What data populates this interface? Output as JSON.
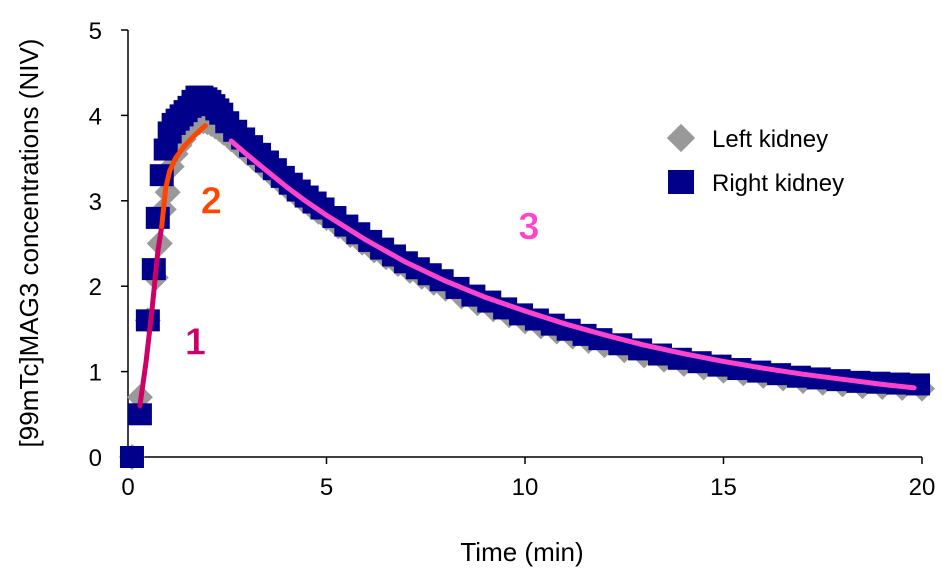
{
  "chart_data": {
    "type": "scatter",
    "xlabel": "Time (min)",
    "ylabel": "[99mTc]MAG3 concentrations (NIV)",
    "xlim": [
      0,
      20
    ],
    "ylim": [
      0,
      5
    ],
    "x_ticks": [
      "0",
      "5",
      "10",
      "15",
      "20"
    ],
    "y_ticks": [
      "0",
      "1",
      "2",
      "3",
      "4",
      "5"
    ],
    "grid": false,
    "legend_position": "top-right",
    "series": [
      {
        "name": "Left kidney",
        "marker": "diamond",
        "color": "#999999",
        "x": [
          0.1,
          0.3,
          0.5,
          0.7,
          0.8,
          0.9,
          1.0,
          1.1,
          1.2,
          1.3,
          1.4,
          1.5,
          1.6,
          1.7,
          1.8,
          1.9,
          2.0,
          2.1,
          2.2,
          2.3,
          2.4,
          2.6,
          2.8,
          3.0,
          3.2,
          3.4,
          3.6,
          3.8,
          4.0,
          4.2,
          4.4,
          4.6,
          4.8,
          5.0,
          5.3,
          5.6,
          5.9,
          6.2,
          6.5,
          6.8,
          7.1,
          7.4,
          7.7,
          8.0,
          8.4,
          8.8,
          9.2,
          9.6,
          10.0,
          10.4,
          10.8,
          11.2,
          11.6,
          12.0,
          12.5,
          13.0,
          13.5,
          14.0,
          14.5,
          15.0,
          15.5,
          16.0,
          16.5,
          17.0,
          17.5,
          18.0,
          18.5,
          19.0,
          19.5,
          20.0
        ],
        "y": [
          0.0,
          0.7,
          1.6,
          2.1,
          2.5,
          2.9,
          3.1,
          3.4,
          3.55,
          3.65,
          3.72,
          3.8,
          3.86,
          3.9,
          3.92,
          3.93,
          3.92,
          3.9,
          3.87,
          3.84,
          3.8,
          3.72,
          3.64,
          3.56,
          3.48,
          3.4,
          3.32,
          3.24,
          3.16,
          3.09,
          3.01,
          2.94,
          2.87,
          2.8,
          2.7,
          2.6,
          2.51,
          2.42,
          2.34,
          2.26,
          2.18,
          2.11,
          2.04,
          1.97,
          1.88,
          1.8,
          1.73,
          1.66,
          1.59,
          1.53,
          1.47,
          1.41,
          1.36,
          1.31,
          1.25,
          1.19,
          1.14,
          1.09,
          1.05,
          1.01,
          0.98,
          0.95,
          0.92,
          0.89,
          0.87,
          0.85,
          0.83,
          0.82,
          0.81,
          0.8
        ]
      },
      {
        "name": "Right kidney",
        "marker": "square",
        "color": "#00008B",
        "x": [
          0.1,
          0.3,
          0.5,
          0.65,
          0.75,
          0.85,
          0.95,
          1.05,
          1.15,
          1.25,
          1.35,
          1.45,
          1.55,
          1.65,
          1.75,
          1.85,
          1.95,
          2.05,
          2.15,
          2.25,
          2.35,
          2.5,
          2.7,
          2.9,
          3.1,
          3.3,
          3.5,
          3.7,
          3.9,
          4.1,
          4.3,
          4.5,
          4.7,
          4.9,
          5.2,
          5.5,
          5.8,
          6.1,
          6.4,
          6.7,
          7.0,
          7.3,
          7.6,
          7.9,
          8.3,
          8.7,
          9.1,
          9.5,
          9.9,
          10.3,
          10.7,
          11.1,
          11.5,
          11.9,
          12.4,
          12.9,
          13.4,
          13.9,
          14.4,
          14.9,
          15.4,
          15.9,
          16.4,
          16.9,
          17.4,
          17.9,
          18.4,
          18.9,
          19.4,
          19.9
        ],
        "y": [
          0.0,
          0.5,
          1.6,
          2.2,
          2.8,
          3.3,
          3.6,
          3.8,
          3.9,
          3.95,
          4.0,
          4.05,
          4.1,
          4.17,
          4.22,
          4.22,
          4.2,
          4.17,
          4.12,
          4.07,
          4.02,
          3.92,
          3.82,
          3.73,
          3.64,
          3.55,
          3.46,
          3.37,
          3.28,
          3.2,
          3.12,
          3.05,
          2.98,
          2.91,
          2.81,
          2.71,
          2.62,
          2.53,
          2.44,
          2.36,
          2.28,
          2.21,
          2.14,
          2.07,
          1.98,
          1.89,
          1.82,
          1.74,
          1.67,
          1.61,
          1.55,
          1.49,
          1.43,
          1.38,
          1.32,
          1.26,
          1.2,
          1.15,
          1.11,
          1.07,
          1.03,
          1.0,
          0.97,
          0.94,
          0.92,
          0.9,
          0.88,
          0.87,
          0.86,
          0.85
        ]
      }
    ],
    "fits": [
      {
        "label": "1",
        "color": "#CC0066",
        "label_color": "#CC0066",
        "label_x": 1.7,
        "label_y": 1.2,
        "x": [
          0.3,
          0.45,
          0.6,
          0.75,
          0.85
        ],
        "y": [
          0.6,
          1.1,
          1.7,
          2.4,
          2.7
        ]
      },
      {
        "label": "2",
        "color": "#FF4500",
        "label_color": "#FF4500",
        "label_x": 2.1,
        "label_y": 2.85,
        "x": [
          0.85,
          0.95,
          1.05,
          1.2,
          1.4,
          1.6,
          1.8,
          1.95
        ],
        "y": [
          2.7,
          3.15,
          3.35,
          3.5,
          3.63,
          3.73,
          3.82,
          3.88
        ]
      },
      {
        "label": "3",
        "color": "#FF44CC",
        "label_color": "#FF44CC",
        "label_x": 10.1,
        "label_y": 2.55,
        "x": [
          2.6,
          3.0,
          3.5,
          4.0,
          4.5,
          5.0,
          6.0,
          7.0,
          8.0,
          9.0,
          10.0,
          11.0,
          12.0,
          13.0,
          14.0,
          15.0,
          16.0,
          17.0,
          18.0,
          19.0,
          19.8
        ],
        "y": [
          3.7,
          3.54,
          3.35,
          3.16,
          2.99,
          2.83,
          2.54,
          2.28,
          2.06,
          1.87,
          1.71,
          1.56,
          1.43,
          1.31,
          1.21,
          1.12,
          1.04,
          0.97,
          0.91,
          0.85,
          0.81
        ]
      }
    ]
  }
}
